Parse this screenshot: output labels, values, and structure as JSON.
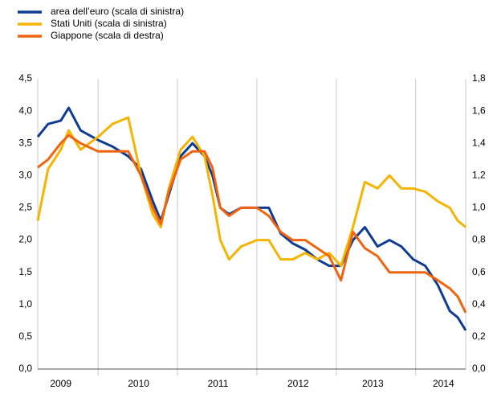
{
  "chart_data": {
    "type": "line",
    "x": [
      2009.24,
      2009.37,
      2009.53,
      2009.63,
      2009.78,
      2010.0,
      2010.18,
      2010.38,
      2010.54,
      2010.69,
      2010.79,
      2010.89,
      2011.04,
      2011.19,
      2011.34,
      2011.44,
      2011.54,
      2011.65,
      2011.8,
      2012.0,
      2012.15,
      2012.3,
      2012.45,
      2012.61,
      2012.76,
      2012.91,
      2013.06,
      2013.21,
      2013.36,
      2013.52,
      2013.67,
      2013.82,
      2013.97,
      2014.12,
      2014.28,
      2014.43,
      2014.53,
      2014.63
    ],
    "series": [
      {
        "name": "area dell’euro (scala di sinistra)",
        "color": "#0d3c92",
        "axis": "y",
        "values": [
          3.6,
          3.8,
          3.85,
          4.05,
          3.7,
          3.55,
          3.45,
          3.3,
          3.1,
          2.6,
          2.3,
          2.7,
          3.3,
          3.5,
          3.3,
          3.0,
          2.5,
          2.4,
          2.5,
          2.5,
          2.5,
          2.1,
          1.95,
          1.85,
          1.7,
          1.6,
          1.6,
          2.0,
          2.2,
          1.9,
          2.0,
          1.9,
          1.7,
          1.6,
          1.3,
          0.9,
          0.8,
          0.6
        ]
      },
      {
        "name": "Stati Uniti (scala di sinistra)",
        "color": "#f5b400",
        "axis": "y",
        "values": [
          2.3,
          3.1,
          3.4,
          3.7,
          3.4,
          3.6,
          3.8,
          3.9,
          3.0,
          2.4,
          2.2,
          2.8,
          3.4,
          3.6,
          3.3,
          2.7,
          2.0,
          1.7,
          1.9,
          2.0,
          2.0,
          1.7,
          1.7,
          1.8,
          1.7,
          1.8,
          1.6,
          2.2,
          2.9,
          2.8,
          3.0,
          2.8,
          2.8,
          2.75,
          2.6,
          2.5,
          2.3,
          2.2
        ]
      },
      {
        "name": "Giappone (scala di destra)",
        "color": "#f0640f",
        "axis": "y2",
        "values": [
          1.25,
          1.3,
          1.4,
          1.45,
          1.4,
          1.35,
          1.35,
          1.35,
          1.2,
          1.0,
          0.9,
          1.1,
          1.3,
          1.35,
          1.35,
          1.25,
          1.0,
          0.95,
          1.0,
          1.0,
          0.95,
          0.85,
          0.8,
          0.8,
          0.75,
          0.7,
          0.55,
          0.85,
          0.75,
          0.7,
          0.6,
          0.6,
          0.6,
          0.6,
          0.55,
          0.5,
          0.45,
          0.35
        ]
      }
    ],
    "xlim": [
      2009.24,
      2014.63
    ],
    "xticks": [
      {
        "value": 2009.53,
        "label": "2009"
      },
      {
        "value": 2010.51,
        "label": "2010"
      },
      {
        "value": 2011.51,
        "label": "2011"
      },
      {
        "value": 2012.52,
        "label": "2012"
      },
      {
        "value": 2013.46,
        "label": "2013"
      },
      {
        "value": 2014.35,
        "label": "2014"
      }
    ],
    "xgrid": [
      2010,
      2011,
      2012,
      2013,
      2014
    ],
    "ylim": [
      0,
      4.5
    ],
    "yticks": [
      {
        "value": 0,
        "label": "0,0"
      },
      {
        "value": 0.5,
        "label": "0,5"
      },
      {
        "value": 1,
        "label": "1,0"
      },
      {
        "value": 1.5,
        "label": "1,5"
      },
      {
        "value": 2,
        "label": "2,0"
      },
      {
        "value": 2.5,
        "label": "2,5"
      },
      {
        "value": 3,
        "label": "3,0"
      },
      {
        "value": 3.5,
        "label": "3,5"
      },
      {
        "value": 4,
        "label": "4,0"
      },
      {
        "value": 4.5,
        "label": "4,5"
      }
    ],
    "y2lim": [
      0,
      1.8
    ],
    "y2ticks": [
      {
        "value": 0,
        "label": "0,0"
      },
      {
        "value": 0.2,
        "label": "0,2"
      },
      {
        "value": 0.4,
        "label": "0,4"
      },
      {
        "value": 0.6,
        "label": "0,6"
      },
      {
        "value": 0.8,
        "label": "0,8"
      },
      {
        "value": 1,
        "label": "1,0"
      },
      {
        "value": 1.2,
        "label": "1,2"
      },
      {
        "value": 1.4,
        "label": "1,4"
      },
      {
        "value": 1.6,
        "label": "1,6"
      },
      {
        "value": 1.8,
        "label": "1,8"
      }
    ],
    "legend": "top-left"
  }
}
